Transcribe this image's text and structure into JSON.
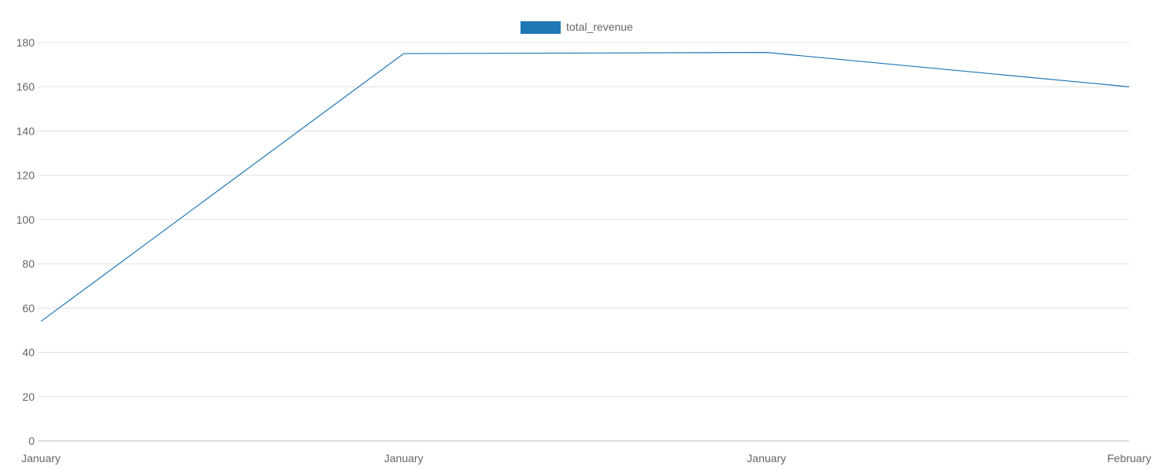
{
  "chart_data": {
    "type": "line",
    "categories": [
      "January",
      "January",
      "January",
      "February"
    ],
    "series": [
      {
        "name": "total_revenue",
        "values": [
          54,
          175,
          175.5,
          160
        ],
        "color": "#1f77b4"
      }
    ],
    "ylim": [
      0,
      180
    ],
    "yticks": [
      0,
      20,
      40,
      60,
      80,
      100,
      120,
      140,
      160,
      180
    ],
    "grid": true,
    "legend_position": "top-center",
    "colors": {
      "grid": "#e0e0e0",
      "axis": "#bdbdbd",
      "tick_text": "#666666"
    }
  }
}
